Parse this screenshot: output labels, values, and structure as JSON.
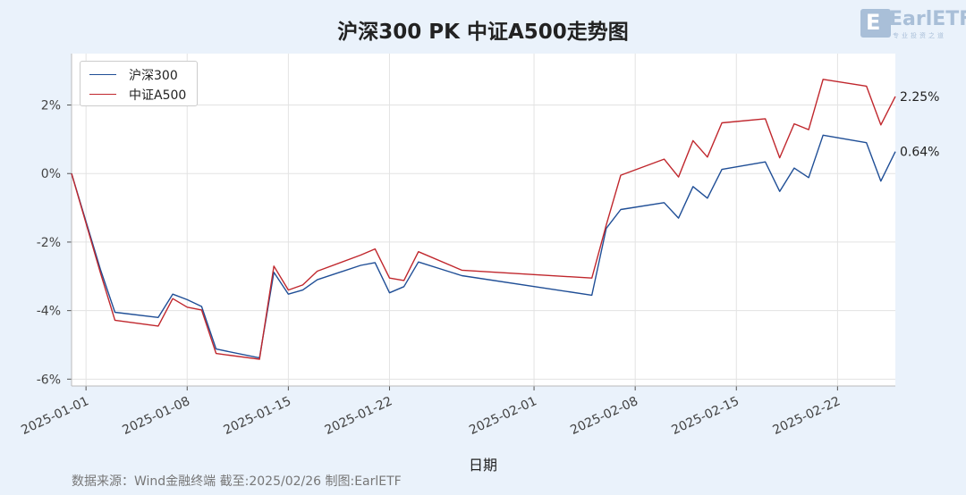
{
  "title": "沪深300 PK 中证A500走势图",
  "logo_text": "EarlETF",
  "logo_sub": "专业投资之道",
  "footer": "数据来源：Wind金融终端 截至:2025/02/26 制图:EarlETF",
  "chart_data": {
    "type": "line",
    "title": "沪深300 PK 中证A500走势图",
    "xlabel": "日期",
    "ylabel": "",
    "x_type": "date",
    "xlim": [
      "2024-12-31",
      "2025-02-26"
    ],
    "ylim": [
      -6.2,
      3.5
    ],
    "yticks": [
      -6,
      -4,
      -2,
      0,
      2
    ],
    "ytick_labels": [
      "-6%",
      "-4%",
      "-2%",
      "0%",
      "2%"
    ],
    "xticks": [
      "2025-01-01",
      "2025-01-08",
      "2025-01-15",
      "2025-01-22",
      "2025-02-01",
      "2025-02-08",
      "2025-02-15",
      "2025-02-22"
    ],
    "grid": true,
    "legend_position": "top-left",
    "series": [
      {
        "name": "沪深300",
        "color": "#1f4e96",
        "end_label": "0.64%",
        "points": [
          [
            "2024-12-31",
            0.0
          ],
          [
            "2025-01-02",
            -2.8
          ],
          [
            "2025-01-03",
            -4.05
          ],
          [
            "2025-01-06",
            -4.2
          ],
          [
            "2025-01-07",
            -3.52
          ],
          [
            "2025-01-08",
            -3.68
          ],
          [
            "2025-01-09",
            -3.88
          ],
          [
            "2025-01-10",
            -5.12
          ],
          [
            "2025-01-13",
            -5.38
          ],
          [
            "2025-01-14",
            -2.88
          ],
          [
            "2025-01-15",
            -3.52
          ],
          [
            "2025-01-16",
            -3.4
          ],
          [
            "2025-01-17",
            -3.1
          ],
          [
            "2025-01-20",
            -2.68
          ],
          [
            "2025-01-21",
            -2.6
          ],
          [
            "2025-01-22",
            -3.48
          ],
          [
            "2025-01-23",
            -3.3
          ],
          [
            "2025-01-24",
            -2.58
          ],
          [
            "2025-01-27",
            -2.98
          ],
          [
            "2025-02-05",
            -3.55
          ],
          [
            "2025-02-06",
            -1.6
          ],
          [
            "2025-02-07",
            -1.05
          ],
          [
            "2025-02-10",
            -0.85
          ],
          [
            "2025-02-11",
            -1.3
          ],
          [
            "2025-02-12",
            -0.38
          ],
          [
            "2025-02-13",
            -0.72
          ],
          [
            "2025-02-14",
            0.12
          ],
          [
            "2025-02-17",
            0.34
          ],
          [
            "2025-02-18",
            -0.52
          ],
          [
            "2025-02-19",
            0.16
          ],
          [
            "2025-02-20",
            -0.12
          ],
          [
            "2025-02-21",
            1.12
          ],
          [
            "2025-02-24",
            0.9
          ],
          [
            "2025-02-25",
            -0.22
          ],
          [
            "2025-02-26",
            0.64
          ]
        ]
      },
      {
        "name": "中证A500",
        "color": "#c0272d",
        "end_label": "2.25%",
        "points": [
          [
            "2024-12-31",
            0.0
          ],
          [
            "2025-01-02",
            -2.9
          ],
          [
            "2025-01-03",
            -4.28
          ],
          [
            "2025-01-06",
            -4.45
          ],
          [
            "2025-01-07",
            -3.65
          ],
          [
            "2025-01-08",
            -3.9
          ],
          [
            "2025-01-09",
            -3.98
          ],
          [
            "2025-01-10",
            -5.25
          ],
          [
            "2025-01-13",
            -5.42
          ],
          [
            "2025-01-14",
            -2.7
          ],
          [
            "2025-01-15",
            -3.4
          ],
          [
            "2025-01-16",
            -3.25
          ],
          [
            "2025-01-17",
            -2.85
          ],
          [
            "2025-01-20",
            -2.38
          ],
          [
            "2025-01-21",
            -2.2
          ],
          [
            "2025-01-22",
            -3.05
          ],
          [
            "2025-01-23",
            -3.12
          ],
          [
            "2025-01-24",
            -2.28
          ],
          [
            "2025-01-27",
            -2.82
          ],
          [
            "2025-02-05",
            -3.05
          ],
          [
            "2025-02-06",
            -1.5
          ],
          [
            "2025-02-07",
            -0.05
          ],
          [
            "2025-02-10",
            0.42
          ],
          [
            "2025-02-11",
            -0.1
          ],
          [
            "2025-02-12",
            0.96
          ],
          [
            "2025-02-13",
            0.48
          ],
          [
            "2025-02-14",
            1.48
          ],
          [
            "2025-02-17",
            1.6
          ],
          [
            "2025-02-18",
            0.46
          ],
          [
            "2025-02-19",
            1.45
          ],
          [
            "2025-02-20",
            1.28
          ],
          [
            "2025-02-21",
            2.75
          ],
          [
            "2025-02-24",
            2.55
          ],
          [
            "2025-02-25",
            1.42
          ],
          [
            "2025-02-26",
            2.25
          ]
        ]
      }
    ]
  }
}
